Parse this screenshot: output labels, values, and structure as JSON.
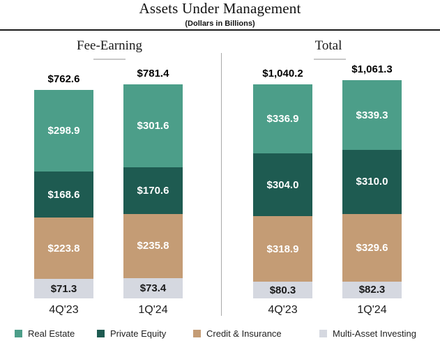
{
  "colors": {
    "real_estate": "#4C9E89",
    "private_equity": "#1E5B51",
    "credit_insurance": "#C49C75",
    "multi_asset": "#D5D8E0"
  },
  "chart_data": {
    "type": "bar",
    "variant": "stacked-grouped",
    "title": "Assets Under Management",
    "subtitle": "(Dollars in Billions)",
    "unit_note": "Dollars in Billions",
    "legend_position": "bottom",
    "grid": "off",
    "categories": [
      "4Q'23",
      "1Q'24"
    ],
    "series_names": [
      "Real Estate",
      "Private Equity",
      "Credit & Insurance",
      "Multi-Asset Investing"
    ],
    "legend": [
      {
        "label": "Real Estate",
        "color": "#4C9E89"
      },
      {
        "label": "Private Equity",
        "color": "#1E5B51"
      },
      {
        "label": "Credit & Insurance",
        "color": "#C49C75"
      },
      {
        "label": "Multi-Asset Investing",
        "color": "#D5D8E0"
      }
    ],
    "groups": [
      {
        "name": "Fee-Earning",
        "bars": [
          {
            "category": "4Q'23",
            "total": 762.6,
            "total_label": "$762.6",
            "segments": [
              {
                "name": "Real Estate",
                "value": 298.9,
                "label": "$298.9"
              },
              {
                "name": "Private Equity",
                "value": 168.6,
                "label": "$168.6"
              },
              {
                "name": "Credit & Insurance",
                "value": 223.8,
                "label": "$223.8"
              },
              {
                "name": "Multi-Asset Investing",
                "value": 71.3,
                "label": "$71.3"
              }
            ]
          },
          {
            "category": "1Q'24",
            "total": 781.4,
            "total_label": "$781.4",
            "segments": [
              {
                "name": "Real Estate",
                "value": 301.6,
                "label": "$301.6"
              },
              {
                "name": "Private Equity",
                "value": 170.6,
                "label": "$170.6"
              },
              {
                "name": "Credit & Insurance",
                "value": 235.8,
                "label": "$235.8"
              },
              {
                "name": "Multi-Asset Investing",
                "value": 73.4,
                "label": "$73.4"
              }
            ]
          }
        ]
      },
      {
        "name": "Total",
        "bars": [
          {
            "category": "4Q'23",
            "total": 1040.2,
            "total_label": "$1,040.2",
            "segments": [
              {
                "name": "Real Estate",
                "value": 336.9,
                "label": "$336.9"
              },
              {
                "name": "Private Equity",
                "value": 304.0,
                "label": "$304.0"
              },
              {
                "name": "Credit & Insurance",
                "value": 318.9,
                "label": "$318.9"
              },
              {
                "name": "Multi-Asset Investing",
                "value": 80.3,
                "label": "$80.3"
              }
            ]
          },
          {
            "category": "1Q'24",
            "total": 1061.3,
            "total_label": "$1,061.3",
            "segments": [
              {
                "name": "Real Estate",
                "value": 339.3,
                "label": "$339.3"
              },
              {
                "name": "Private Equity",
                "value": 310.0,
                "label": "$310.0"
              },
              {
                "name": "Credit & Insurance",
                "value": 329.6,
                "label": "$329.6"
              },
              {
                "name": "Multi-Asset Investing",
                "value": 82.3,
                "label": "$82.3"
              }
            ]
          }
        ]
      }
    ]
  }
}
